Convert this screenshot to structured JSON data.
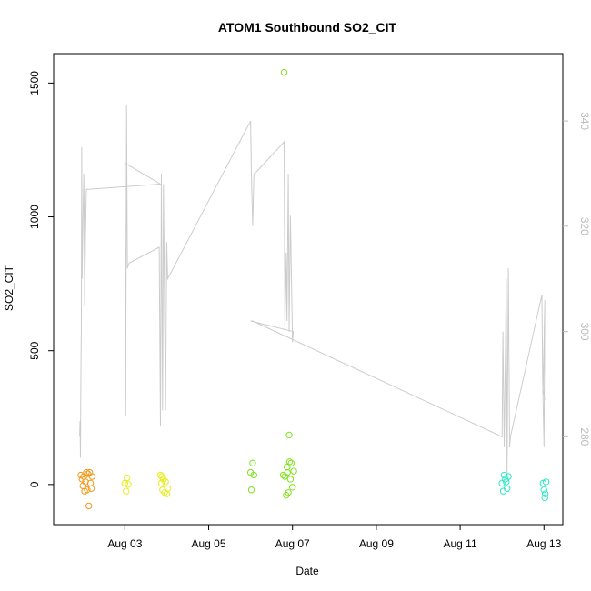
{
  "chart_data": {
    "type": "scatter",
    "title": "ATOM1 Southbound SO2_CIT",
    "xlabel": "Date",
    "ylabel": "SO2_CIT",
    "right_axis": {
      "label": "",
      "ticks": [
        "280",
        "300",
        "320",
        "340"
      ],
      "tick_values": [
        280,
        300,
        320,
        340
      ],
      "range": [
        263.3,
        352.8
      ]
    },
    "x_ticks": [
      "Aug 03",
      "Aug 05",
      "Aug 07",
      "Aug 09",
      "Aug 11",
      "Aug 13"
    ],
    "x_tick_values": [
      3,
      5,
      7,
      9,
      11,
      13
    ],
    "y_ticks": [
      "0",
      "500",
      "1000",
      "1500"
    ],
    "y_tick_values": [
      0,
      500,
      1000,
      1500
    ],
    "xlim": [
      1.3,
      13.45
    ],
    "ylim": [
      -150,
      1610
    ],
    "grid": false,
    "series": [
      {
        "type": "points",
        "color": "#f29a1c",
        "x": [
          1.95,
          1.98,
          2.0,
          2.02,
          2.04,
          2.06,
          2.08,
          2.1,
          2.12,
          2.14,
          2.16,
          2.18,
          2.2,
          2.22
        ],
        "y": [
          35,
          20,
          -5,
          30,
          -25,
          10,
          45,
          -20,
          40,
          -80,
          45,
          5,
          -15,
          30
        ]
      },
      {
        "type": "points",
        "color": "#e6ee1d",
        "x": [
          3.0,
          3.03,
          3.05,
          3.08,
          3.85,
          3.87,
          3.9,
          3.92,
          3.95,
          3.97,
          4.0,
          4.02,
          3.88
        ],
        "y": [
          5,
          -25,
          25,
          0,
          35,
          5,
          -20,
          20,
          -30,
          10,
          -35,
          -15,
          30
        ]
      },
      {
        "type": "points",
        "color": "#7fe31d",
        "x": [
          6.0,
          6.02,
          6.05,
          6.08,
          6.8,
          6.82,
          6.85,
          6.87,
          6.9,
          6.92,
          6.95,
          6.97,
          7.0,
          7.03,
          6.78,
          6.88,
          6.93
        ],
        "y": [
          45,
          -20,
          80,
          35,
          1540,
          30,
          -40,
          65,
          -30,
          185,
          20,
          80,
          -10,
          50,
          35,
          45,
          85
        ]
      },
      {
        "type": "points",
        "color": "#2ee8c6",
        "x": [
          12.0,
          12.03,
          12.05,
          12.08,
          12.1,
          12.12,
          12.15,
          12.98,
          13.0,
          13.02,
          13.05,
          13.03
        ],
        "y": [
          5,
          -25,
          35,
          20,
          10,
          -15,
          30,
          5,
          -20,
          -50,
          10,
          -35
        ]
      },
      {
        "type": "line",
        "axis": "right",
        "color": "#cccccc",
        "x": [
          1.92,
          1.93,
          1.94,
          1.95,
          1.96,
          1.97,
          1.98,
          2.0,
          2.02,
          2.04,
          2.06,
          2.08,
          2.1,
          2.12,
          3.85,
          3.0,
          3.02,
          3.04,
          3.06,
          3.1,
          3.82,
          3.85,
          3.87,
          3.9,
          3.92,
          3.95,
          3.97,
          4.0,
          4.02,
          6.0,
          6.02,
          6.05,
          6.08,
          6.1,
          6.8,
          6.82,
          6.85,
          6.87,
          6.9,
          6.92,
          6.95,
          7.0,
          7.02,
          6.0,
          6.05,
          12.0,
          12.02,
          12.05,
          12.08,
          12.1,
          12.12,
          12.15,
          12.18,
          12.2,
          12.95,
          12.97,
          13.0,
          13.02,
          12.98,
          13.02
        ],
        "y": [
          280,
          283,
          276,
          293,
          300,
          335,
          310,
          322,
          330,
          305,
          318,
          327,
          327,
          327,
          328,
          332,
          284,
          343,
          312,
          313,
          316,
          282,
          330,
          285,
          328,
          302,
          285,
          317,
          310,
          340,
          330,
          320,
          330,
          330,
          336,
          300,
          315,
          302,
          330,
          300,
          322,
          298,
          300,
          302,
          302,
          280,
          300,
          278,
          296,
          310,
          272,
          312,
          278,
          280,
          307,
          290,
          278,
          306,
          289,
          287
        ]
      }
    ]
  }
}
